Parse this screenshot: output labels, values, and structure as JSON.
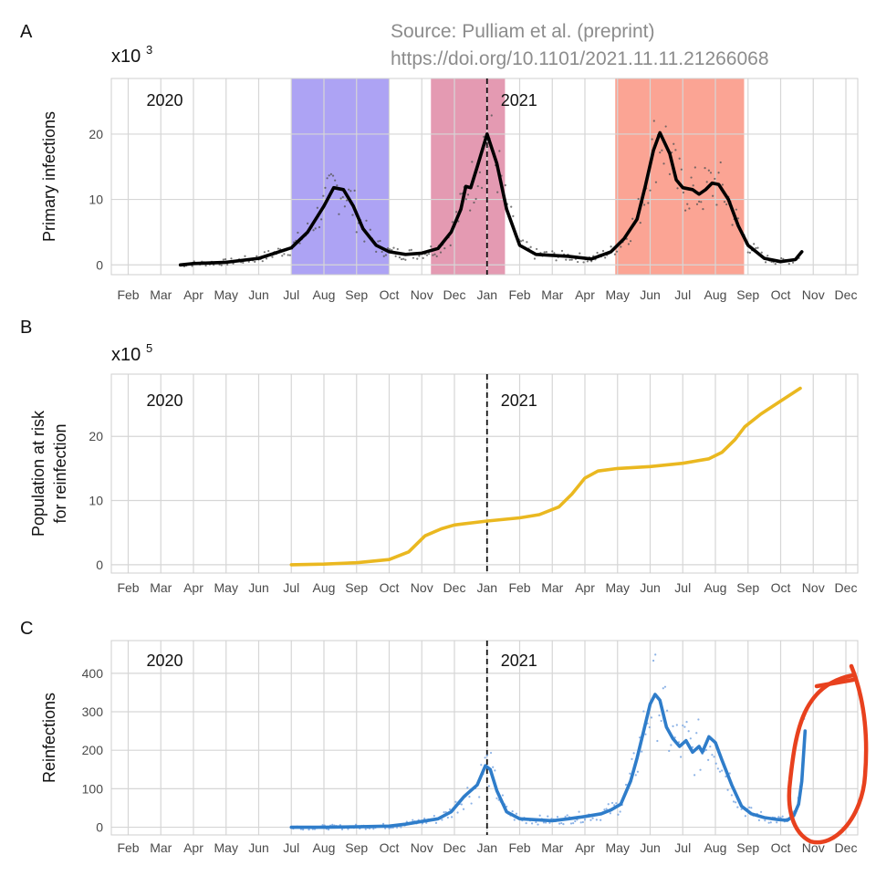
{
  "source": {
    "line1": "Source: Pulliam et al. (preprint)",
    "line2": "https://doi.org/10.1101/2021.11.11.21266068"
  },
  "months": [
    "Feb",
    "Mar",
    "Apr",
    "May",
    "Jun",
    "Jul",
    "Aug",
    "Sep",
    "Oct",
    "Nov",
    "Dec",
    "Jan",
    "Feb",
    "Mar",
    "Apr",
    "May",
    "Jun",
    "Jul",
    "Aug",
    "Sep",
    "Oct",
    "Nov",
    "Dec"
  ],
  "year_labels": [
    "2020",
    "2021"
  ],
  "year_boundary": 11,
  "chart_data": [
    {
      "panel_label": "A",
      "type": "line",
      "ylabel": "Primary infections",
      "scale_label": "x10",
      "scale_exp": "3",
      "yticks": [
        0,
        10,
        20
      ],
      "ylim": [
        -1.5,
        28.5
      ],
      "line_color": "#000000",
      "points_color": "#555555",
      "waves": [
        {
          "start": 4.99,
          "end": 8.0,
          "color": "#8a7cf0"
        },
        {
          "start": 9.28,
          "end": 11.55,
          "color": "#d86f91"
        },
        {
          "start": 14.93,
          "end": 18.88,
          "color": "#fa7e67"
        }
      ],
      "series": [
        {
          "values": [
            [
              1.6,
              0
            ],
            [
              2.0,
              0.2
            ],
            [
              3.0,
              0.4
            ],
            [
              4.0,
              1.0
            ],
            [
              4.5,
              1.8
            ],
            [
              5.0,
              2.6
            ],
            [
              5.5,
              5.0
            ],
            [
              6.0,
              9.0
            ],
            [
              6.3,
              11.8
            ],
            [
              6.6,
              11.5
            ],
            [
              6.9,
              9.0
            ],
            [
              7.2,
              5.5
            ],
            [
              7.6,
              3.0
            ],
            [
              8.0,
              2.0
            ],
            [
              8.5,
              1.6
            ],
            [
              9.0,
              1.8
            ],
            [
              9.5,
              2.5
            ],
            [
              9.9,
              5.0
            ],
            [
              10.2,
              8.5
            ],
            [
              10.35,
              12.0
            ],
            [
              10.5,
              11.8
            ],
            [
              10.7,
              15.0
            ],
            [
              11.0,
              20.0
            ],
            [
              11.3,
              15.5
            ],
            [
              11.6,
              8.5
            ],
            [
              12.0,
              3.0
            ],
            [
              12.5,
              1.6
            ],
            [
              13.5,
              1.3
            ],
            [
              14.2,
              0.9
            ],
            [
              14.8,
              2.0
            ],
            [
              15.2,
              4.0
            ],
            [
              15.6,
              7.0
            ],
            [
              15.85,
              12.0
            ],
            [
              16.1,
              17.5
            ],
            [
              16.3,
              20.2
            ],
            [
              16.6,
              17.0
            ],
            [
              16.8,
              13.0
            ],
            [
              17.0,
              11.8
            ],
            [
              17.3,
              11.5
            ],
            [
              17.5,
              10.8
            ],
            [
              17.7,
              11.5
            ],
            [
              17.9,
              12.5
            ],
            [
              18.1,
              12.3
            ],
            [
              18.4,
              10.0
            ],
            [
              18.7,
              6.0
            ],
            [
              19.0,
              3.0
            ],
            [
              19.5,
              1.0
            ],
            [
              20.0,
              0.5
            ],
            [
              20.45,
              0.8
            ],
            [
              20.65,
              2.0
            ]
          ]
        }
      ]
    },
    {
      "panel_label": "B",
      "type": "line",
      "ylabel": "Population at risk",
      "ylabel2": "for reinfection",
      "scale_label": "x10",
      "scale_exp": "5",
      "yticks": [
        0,
        10,
        20
      ],
      "ylim": [
        -1.3,
        29.7
      ],
      "line_color": "#eab820",
      "series": [
        {
          "values": [
            [
              5.0,
              0
            ],
            [
              6.0,
              0.1
            ],
            [
              7.0,
              0.3
            ],
            [
              8.0,
              0.8
            ],
            [
              8.6,
              2.0
            ],
            [
              9.1,
              4.5
            ],
            [
              9.6,
              5.6
            ],
            [
              10.0,
              6.2
            ],
            [
              11.0,
              6.8
            ],
            [
              12.0,
              7.3
            ],
            [
              12.6,
              7.8
            ],
            [
              13.2,
              9.0
            ],
            [
              13.6,
              11.0
            ],
            [
              14.0,
              13.5
            ],
            [
              14.4,
              14.6
            ],
            [
              15.0,
              15.0
            ],
            [
              16.0,
              15.3
            ],
            [
              17.0,
              15.8
            ],
            [
              17.8,
              16.5
            ],
            [
              18.2,
              17.5
            ],
            [
              18.6,
              19.5
            ],
            [
              18.9,
              21.5
            ],
            [
              19.4,
              23.5
            ],
            [
              20.0,
              25.5
            ],
            [
              20.6,
              27.5
            ]
          ]
        }
      ]
    },
    {
      "panel_label": "C",
      "type": "line",
      "ylabel": "Reinfections",
      "yticks": [
        0,
        100,
        200,
        300,
        400
      ],
      "ylim": [
        -20,
        485
      ],
      "line_color": "#2f7dca",
      "points_color": "#6e9fe0",
      "series": [
        {
          "values": [
            [
              5.0,
              0
            ],
            [
              6.0,
              0
            ],
            [
              7.0,
              1
            ],
            [
              8.0,
              3
            ],
            [
              8.5,
              8
            ],
            [
              9.0,
              15
            ],
            [
              9.5,
              22
            ],
            [
              9.9,
              40
            ],
            [
              10.3,
              80
            ],
            [
              10.7,
              110
            ],
            [
              10.95,
              160
            ],
            [
              11.1,
              150
            ],
            [
              11.3,
              95
            ],
            [
              11.6,
              40
            ],
            [
              12.0,
              22
            ],
            [
              13.0,
              17
            ],
            [
              13.5,
              22
            ],
            [
              14.0,
              28
            ],
            [
              14.5,
              35
            ],
            [
              14.8,
              45
            ],
            [
              15.1,
              60
            ],
            [
              15.4,
              120
            ],
            [
              15.6,
              180
            ],
            [
              15.8,
              250
            ],
            [
              16.0,
              320
            ],
            [
              16.15,
              345
            ],
            [
              16.3,
              330
            ],
            [
              16.5,
              260
            ],
            [
              16.7,
              230
            ],
            [
              16.9,
              210
            ],
            [
              17.1,
              225
            ],
            [
              17.3,
              195
            ],
            [
              17.5,
              210
            ],
            [
              17.6,
              195
            ],
            [
              17.8,
              235
            ],
            [
              18.0,
              220
            ],
            [
              18.2,
              175
            ],
            [
              18.5,
              110
            ],
            [
              18.8,
              55
            ],
            [
              19.1,
              35
            ],
            [
              19.5,
              25
            ],
            [
              19.9,
              20
            ],
            [
              20.2,
              18
            ],
            [
              20.4,
              30
            ],
            [
              20.55,
              60
            ],
            [
              20.65,
              120
            ],
            [
              20.75,
              250
            ]
          ]
        }
      ]
    }
  ]
}
